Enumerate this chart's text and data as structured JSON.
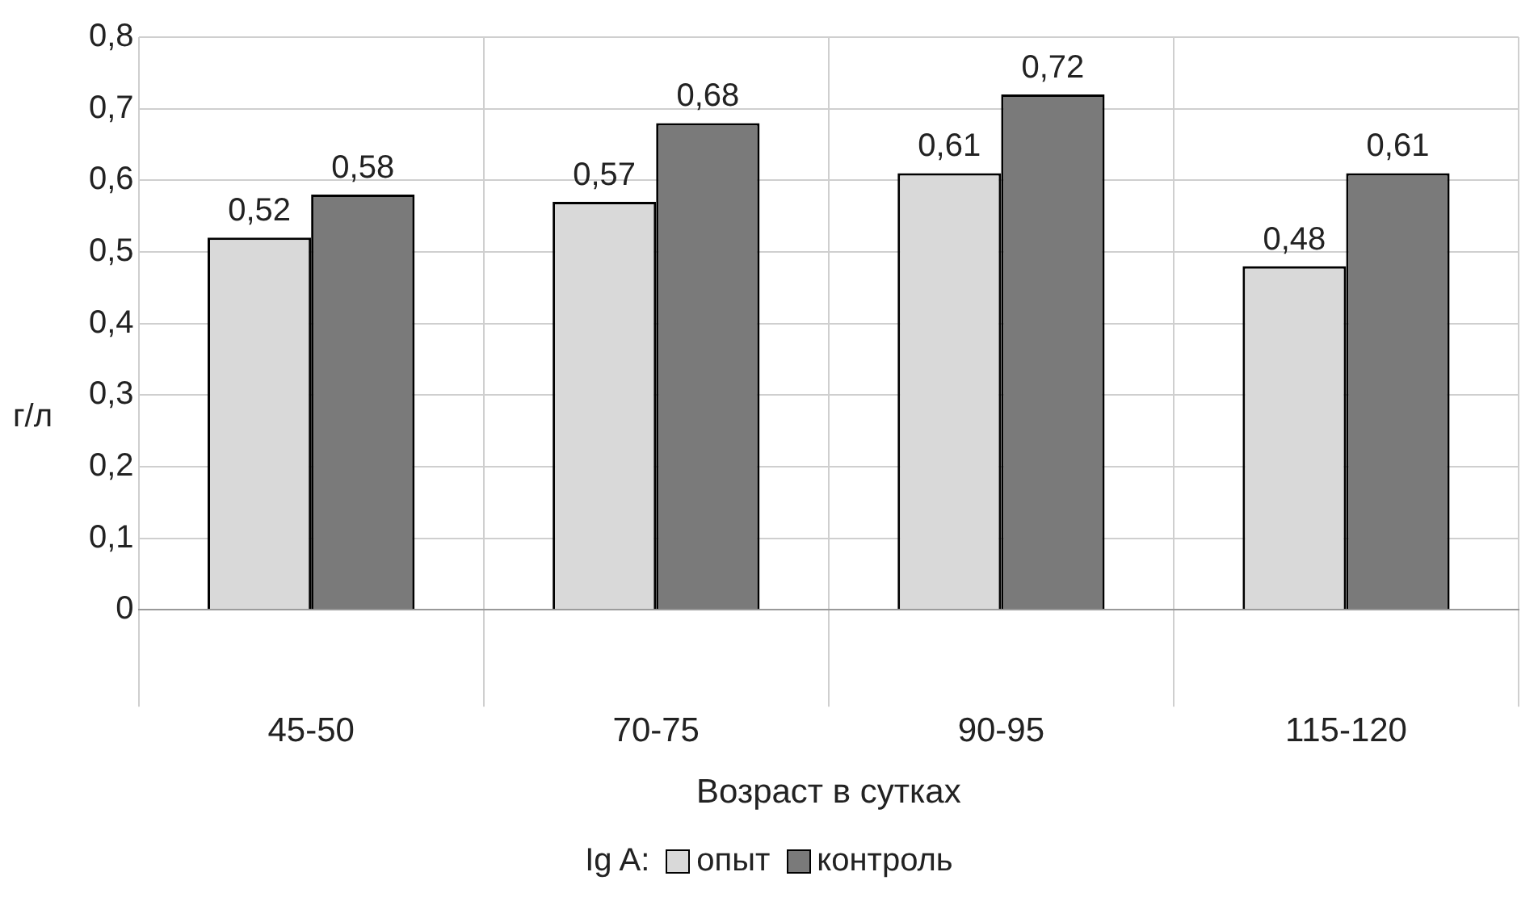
{
  "chart_data": {
    "type": "bar",
    "xlabel": "Возраст в сутках",
    "ylabel": "г/л",
    "legend_title": "Ig A:",
    "categories": [
      "45-50",
      "70-75",
      "90-95",
      "115-120"
    ],
    "series": [
      {
        "name": "опыт",
        "color": "#d9d9d9",
        "values": [
          0.52,
          0.57,
          0.61,
          0.48
        ],
        "value_labels": [
          "0,52",
          "0,57",
          "0,61",
          "0,48"
        ]
      },
      {
        "name": "контроль",
        "color": "#7a7a7a",
        "values": [
          0.58,
          0.68,
          0.72,
          0.61
        ],
        "value_labels": [
          "0,58",
          "0,68",
          "0,72",
          "0,61"
        ]
      }
    ],
    "ylim": [
      0,
      0.8
    ],
    "yticks": [
      0,
      {
        "value": 0.1,
        "label": "0,1"
      },
      {
        "value": 0.2,
        "label": "0,2"
      },
      {
        "value": 0.3,
        "label": "0,3"
      },
      {
        "value": 0.4,
        "label": "0,4"
      },
      {
        "value": 0.5,
        "label": "0,5"
      },
      {
        "value": 0.6,
        "label": "0,6"
      },
      {
        "value": 0.7,
        "label": "0,7"
      },
      {
        "value": 0.8,
        "label": "0,8"
      }
    ],
    "grid": true,
    "legend": "bottom"
  }
}
